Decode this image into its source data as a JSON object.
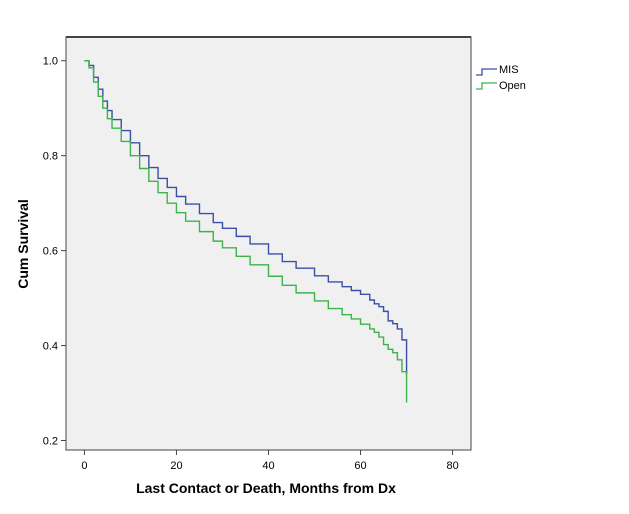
{
  "chart_data": {
    "type": "line",
    "step": true,
    "xlabel": "Last Contact or Death, Months from Dx",
    "ylabel": "Cum Survival",
    "xlim": [
      -4,
      84
    ],
    "ylim": [
      0.18,
      1.05
    ],
    "xticks": [
      0,
      20,
      40,
      60,
      80
    ],
    "xtick_labels": [
      "0",
      "20",
      "40",
      "60",
      "80"
    ],
    "yticks": [
      0.2,
      0.4,
      0.6,
      0.8,
      1.0
    ],
    "ytick_labels": [
      "0.2",
      "0.4",
      "0.6",
      "0.8",
      "1.0"
    ],
    "grid": false,
    "legend_position": "top-right outside plot",
    "background_color": "#f0f0f0",
    "series": [
      {
        "name": "MIS",
        "color": "#3b4fa8",
        "points": [
          [
            0,
            1.0
          ],
          [
            1,
            0.99
          ],
          [
            2,
            0.965
          ],
          [
            3,
            0.94
          ],
          [
            4,
            0.915
          ],
          [
            5,
            0.895
          ],
          [
            6,
            0.876
          ],
          [
            8,
            0.853
          ],
          [
            10,
            0.827
          ],
          [
            12,
            0.8
          ],
          [
            14,
            0.775
          ],
          [
            16,
            0.752
          ],
          [
            18,
            0.733
          ],
          [
            20,
            0.714
          ],
          [
            22,
            0.698
          ],
          [
            25,
            0.678
          ],
          [
            28,
            0.659
          ],
          [
            30,
            0.647
          ],
          [
            33,
            0.63
          ],
          [
            36,
            0.614
          ],
          [
            40,
            0.593
          ],
          [
            43,
            0.577
          ],
          [
            46,
            0.563
          ],
          [
            50,
            0.547
          ],
          [
            53,
            0.534
          ],
          [
            56,
            0.524
          ],
          [
            58,
            0.516
          ],
          [
            60,
            0.508
          ],
          [
            62,
            0.496
          ],
          [
            63,
            0.488
          ],
          [
            64,
            0.482
          ],
          [
            65,
            0.472
          ],
          [
            66,
            0.452
          ],
          [
            67,
            0.446
          ],
          [
            68,
            0.435
          ],
          [
            69,
            0.412
          ],
          [
            70,
            0.395
          ],
          [
            70,
            0.34
          ]
        ]
      },
      {
        "name": "Open",
        "color": "#3cb44b",
        "points": [
          [
            0,
            1.0
          ],
          [
            1,
            0.985
          ],
          [
            2,
            0.955
          ],
          [
            3,
            0.925
          ],
          [
            4,
            0.9
          ],
          [
            5,
            0.878
          ],
          [
            6,
            0.858
          ],
          [
            8,
            0.83
          ],
          [
            10,
            0.8
          ],
          [
            12,
            0.773
          ],
          [
            14,
            0.746
          ],
          [
            16,
            0.722
          ],
          [
            18,
            0.7
          ],
          [
            20,
            0.68
          ],
          [
            22,
            0.662
          ],
          [
            25,
            0.64
          ],
          [
            28,
            0.62
          ],
          [
            30,
            0.606
          ],
          [
            33,
            0.588
          ],
          [
            36,
            0.57
          ],
          [
            40,
            0.546
          ],
          [
            43,
            0.527
          ],
          [
            46,
            0.511
          ],
          [
            50,
            0.494
          ],
          [
            53,
            0.478
          ],
          [
            56,
            0.465
          ],
          [
            58,
            0.456
          ],
          [
            60,
            0.445
          ],
          [
            62,
            0.435
          ],
          [
            63,
            0.428
          ],
          [
            64,
            0.418
          ],
          [
            65,
            0.402
          ],
          [
            66,
            0.392
          ],
          [
            67,
            0.385
          ],
          [
            68,
            0.37
          ],
          [
            69,
            0.345
          ],
          [
            70,
            0.33
          ],
          [
            70,
            0.28
          ]
        ]
      }
    ]
  }
}
